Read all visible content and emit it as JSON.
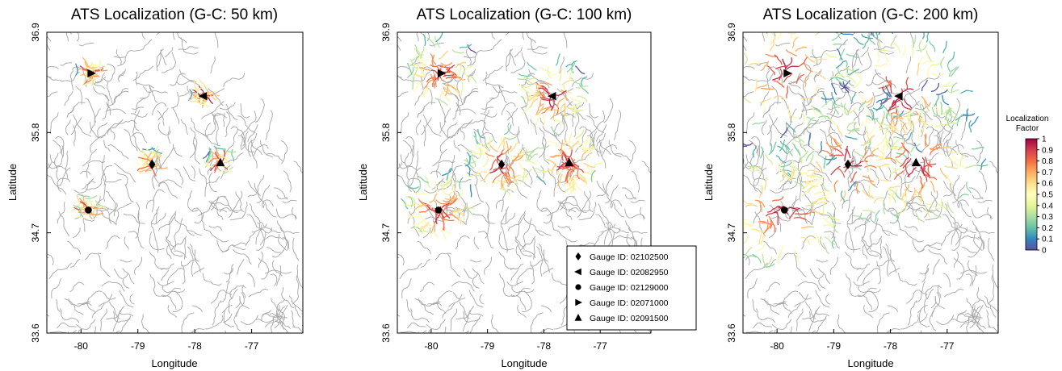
{
  "chart_data": [
    {
      "type": "scatter",
      "title": "ATS Localization (G-C: 50 km)",
      "xlabel": "Longitude",
      "ylabel": "Latitude",
      "xlim": [
        -80.6,
        -76.1
      ],
      "ylim": [
        33.6,
        36.9
      ],
      "xticks": [
        "-80",
        "-79",
        "-78",
        "-77"
      ],
      "yticks": [
        "33.6",
        "34.7",
        "35.8",
        "36.9"
      ],
      "gauges": [
        {
          "id": "02102500",
          "marker": "diamond",
          "lon": -78.75,
          "lat": 35.45
        },
        {
          "id": "02082950",
          "marker": "triangle-left",
          "lon": -77.85,
          "lat": 36.2
        },
        {
          "id": "02129000",
          "marker": "circle",
          "lon": -79.87,
          "lat": 34.95
        },
        {
          "id": "02071000",
          "marker": "triangle-right",
          "lon": -79.82,
          "lat": 36.45
        },
        {
          "id": "02091500",
          "marker": "triangle-up",
          "lon": -77.55,
          "lat": 35.47
        }
      ]
    },
    {
      "type": "scatter",
      "title": "ATS Localization (G-C: 100 km)",
      "xlabel": "Longitude",
      "ylabel": "Latitude",
      "xlim": [
        -80.6,
        -76.1
      ],
      "ylim": [
        33.6,
        36.9
      ],
      "xticks": [
        "-80",
        "-79",
        "-78",
        "-77"
      ],
      "yticks": [
        "33.6",
        "34.7",
        "35.8",
        "36.9"
      ],
      "gauges": [
        {
          "id": "02102500",
          "marker": "diamond",
          "lon": -78.75,
          "lat": 35.45
        },
        {
          "id": "02082950",
          "marker": "triangle-left",
          "lon": -77.85,
          "lat": 36.2
        },
        {
          "id": "02129000",
          "marker": "circle",
          "lon": -79.87,
          "lat": 34.95
        },
        {
          "id": "02071000",
          "marker": "triangle-right",
          "lon": -79.82,
          "lat": 36.45
        },
        {
          "id": "02091500",
          "marker": "triangle-up",
          "lon": -77.55,
          "lat": 35.47
        }
      ],
      "legend": {
        "placement": "lower-right",
        "entries": [
          {
            "marker": "diamond",
            "label": "Gauge ID: 02102500"
          },
          {
            "marker": "triangle-left",
            "label": "Gauge ID: 02082950"
          },
          {
            "marker": "circle",
            "label": "Gauge ID: 02129000"
          },
          {
            "marker": "triangle-right",
            "label": "Gauge ID: 02071000"
          },
          {
            "marker": "triangle-up",
            "label": "Gauge ID: 02091500"
          }
        ]
      }
    },
    {
      "type": "scatter",
      "title": "ATS Localization (G-C: 200 km)",
      "xlabel": "Longitude",
      "ylabel": "Latitude",
      "xlim": [
        -80.6,
        -76.1
      ],
      "ylim": [
        33.6,
        36.9
      ],
      "xticks": [
        "-80",
        "-79",
        "-78",
        "-77"
      ],
      "yticks": [
        "33.6",
        "34.7",
        "35.8",
        "36.9"
      ],
      "gauges": [
        {
          "id": "02102500",
          "marker": "diamond",
          "lon": -78.75,
          "lat": 35.45
        },
        {
          "id": "02082950",
          "marker": "triangle-left",
          "lon": -77.85,
          "lat": 36.2
        },
        {
          "id": "02129000",
          "marker": "circle",
          "lon": -79.87,
          "lat": 34.95
        },
        {
          "id": "02071000",
          "marker": "triangle-right",
          "lon": -79.82,
          "lat": 36.45
        },
        {
          "id": "02091500",
          "marker": "triangle-up",
          "lon": -77.55,
          "lat": 35.47
        }
      ],
      "colorbar": {
        "title_line1": "Localization",
        "title_line2": "Factor",
        "ticks": [
          "0",
          "0.1",
          "0.2",
          "0.3",
          "0.4",
          "0.5",
          "0.6",
          "0.7",
          "0.8",
          "0.9",
          "1"
        ],
        "range": [
          0,
          1
        ],
        "colormap": [
          "#5e4fa2",
          "#3288bd",
          "#66c2a5",
          "#abdda4",
          "#e6f598",
          "#ffffbf",
          "#fee08b",
          "#fdae61",
          "#f46d43",
          "#d53e4f",
          "#9e0142"
        ]
      }
    }
  ],
  "colors": {
    "river_network": "#a6a6a6",
    "marker": "#000000",
    "axes": "#000000"
  },
  "extent_radius_km": [
    50,
    100,
    200
  ]
}
